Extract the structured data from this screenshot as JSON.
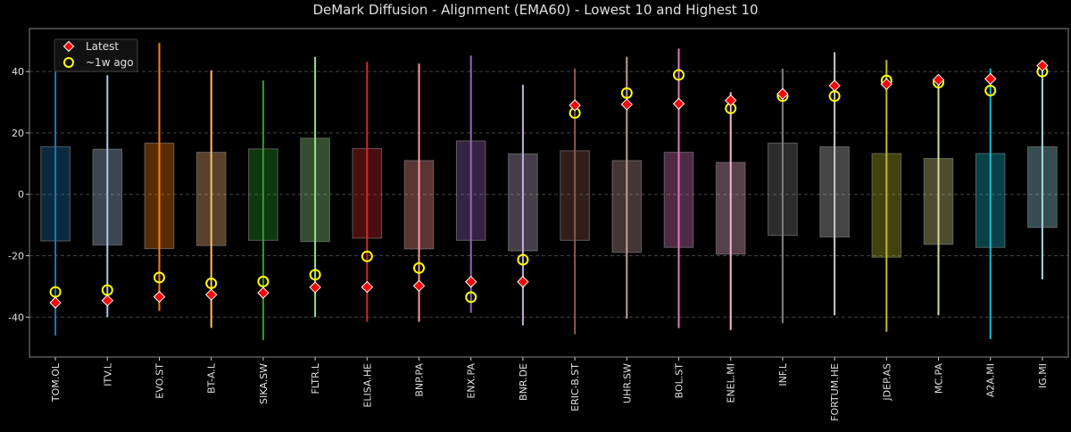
{
  "chart_data": {
    "type": "box-range-scatter",
    "title": "DeMark Diffusion - Alignment (EMA60) - Lowest 10 and Highest 10",
    "xlabel": "",
    "ylabel": "",
    "ylim": [
      -53,
      54
    ],
    "yticks": [
      -40,
      -20,
      0,
      20,
      40
    ],
    "grid": "horizontal dashed",
    "legend": {
      "placement": "top-left",
      "entries": [
        "Latest",
        "~1w ago"
      ]
    },
    "marker_colors": {
      "latest": "#ff0000",
      "week_ago": "#ffff00"
    },
    "categories": [
      "TOM.OL",
      "ITV.L",
      "EVO.ST",
      "BT-A.L",
      "SIKA.SW",
      "FLTR.L",
      "ELISA.HE",
      "BNP.PA",
      "ENX.PA",
      "BNR.DE",
      "ERIC-B.ST",
      "UHR.SW",
      "BOL.ST",
      "ENEL.MI",
      "INF.L",
      "FORTUM.HE",
      "JDEP.AS",
      "MC.PA",
      "A2A.MI",
      "IG.MI"
    ],
    "colors": [
      "#1f77b4",
      "#aec7e8",
      "#ff7f0e",
      "#ffbb78",
      "#2ca02c",
      "#98df8a",
      "#d62728",
      "#ff9896",
      "#9467bd",
      "#c5b0d5",
      "#8c564b",
      "#c49c94",
      "#e377c2",
      "#f7b6d2",
      "#7f7f7f",
      "#c7c7c7",
      "#bcbd22",
      "#dbdb8d",
      "#17becf",
      "#9edae5"
    ],
    "box_low": [
      -15.2,
      -16.5,
      -17.7,
      -16.7,
      -15.0,
      -15.4,
      -14.3,
      -17.8,
      -15.0,
      -18.4,
      -15.0,
      -18.9,
      -17.3,
      -19.5,
      -13.4,
      -13.9,
      -20.5,
      -16.3,
      -17.3,
      -10.8
    ],
    "box_high": [
      15.5,
      14.7,
      16.7,
      13.7,
      14.8,
      18.3,
      14.9,
      11.0,
      17.4,
      13.2,
      14.2,
      11.0,
      13.7,
      10.4,
      16.7,
      15.5,
      13.3,
      11.7,
      13.3,
      15.5
    ],
    "range_min": [
      -46.0,
      -40.0,
      -38.0,
      -43.5,
      -47.5,
      -40.0,
      -41.5,
      -41.5,
      -38.6,
      -42.7,
      -45.6,
      -40.5,
      -43.6,
      -44.2,
      -42.0,
      -39.4,
      -44.8,
      -39.4,
      -47.2,
      -27.7
    ],
    "range_max": [
      46.0,
      38.8,
      49.3,
      40.4,
      37.1,
      44.8,
      43.2,
      42.6,
      45.2,
      35.7,
      41.0,
      44.8,
      47.5,
      33.3,
      40.9,
      46.3,
      43.8,
      37.2,
      41.0,
      42.6
    ],
    "series": [
      {
        "name": "Latest",
        "values": [
          -35.3,
          -34.6,
          -33.4,
          -32.7,
          -32.1,
          -30.3,
          -30.2,
          -29.8,
          -28.5,
          -28.5,
          29.0,
          29.3,
          29.5,
          30.6,
          32.7,
          35.4,
          35.9,
          37.3,
          37.6,
          41.9
        ]
      },
      {
        "name": "~1w ago",
        "values": [
          -31.8,
          -31.2,
          -27.1,
          -29.0,
          -28.4,
          -26.2,
          -20.2,
          -24.0,
          -33.5,
          -21.3,
          26.5,
          33.0,
          38.9,
          28.0,
          32.0,
          32.0,
          37.1,
          36.4,
          33.8,
          40.0
        ]
      }
    ]
  }
}
